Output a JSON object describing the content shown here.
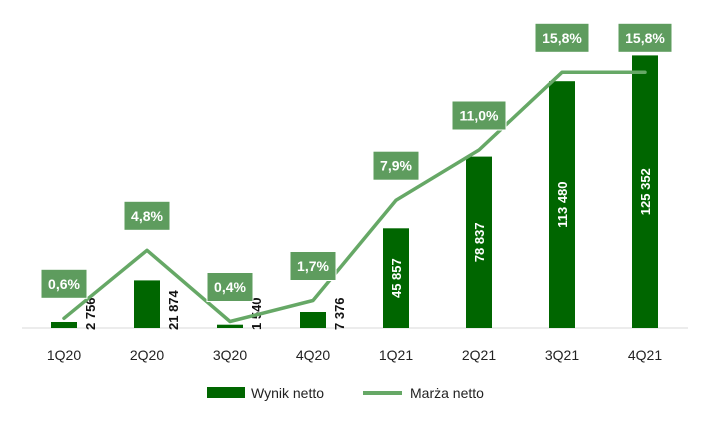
{
  "chart_data": {
    "type": "bar",
    "categories": [
      "1Q20",
      "2Q20",
      "3Q20",
      "4Q20",
      "1Q21",
      "2Q21",
      "3Q21",
      "4Q21"
    ],
    "series": [
      {
        "name": "Wynik netto",
        "type": "bar",
        "values": [
          2756,
          21874,
          1540,
          7376,
          45857,
          78837,
          113480,
          125352
        ],
        "labels": [
          "2 756",
          "21 874",
          "1 540",
          "7 376",
          "45 857",
          "78 837",
          "113 480",
          "125 352"
        ],
        "color": "#006600"
      },
      {
        "name": "Marża netto",
        "type": "line",
        "values": [
          0.6,
          4.8,
          0.4,
          1.7,
          7.9,
          11.0,
          15.8,
          15.8
        ],
        "labels": [
          "0,6%",
          "4,8%",
          "0,4%",
          "1,7%",
          "7,9%",
          "11,0%",
          "15,8%",
          "15,8%"
        ],
        "color": "#66A866"
      }
    ],
    "bar_ylim": [
      0,
      126000
    ],
    "line_ylim": [
      0,
      16.5
    ],
    "legend_position": "bottom",
    "grid": false
  },
  "colors": {
    "bar": "#006600",
    "line": "#66A866",
    "label_box": "#5E9C5E",
    "axis": "#d9d9d9"
  }
}
